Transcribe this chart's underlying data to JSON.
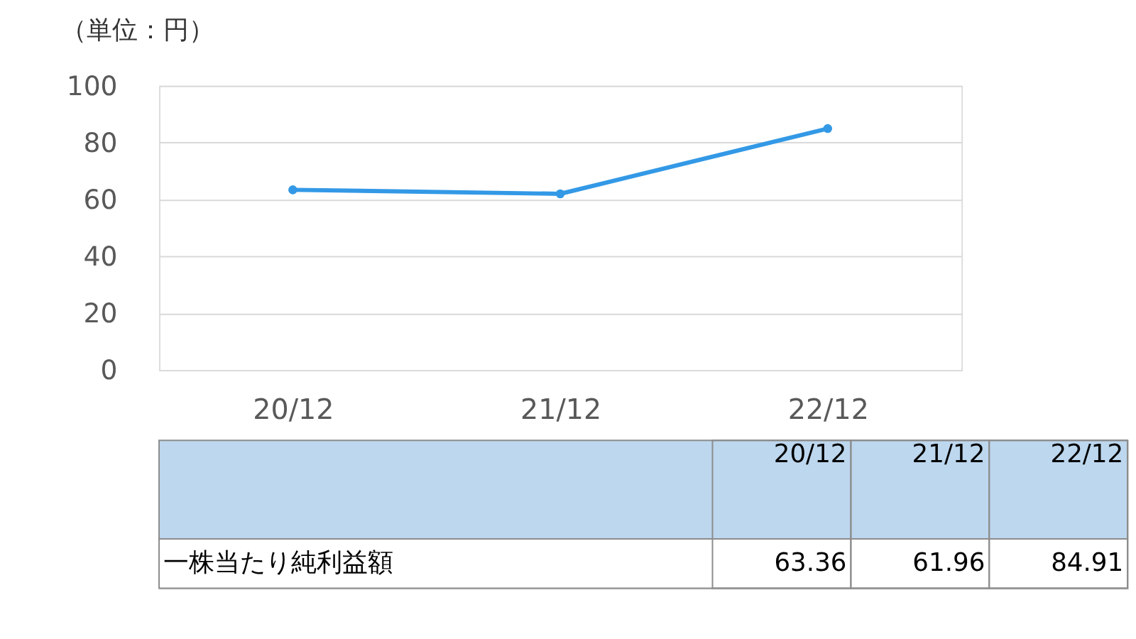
{
  "chart_data": [
    {
      "type": "line",
      "ylabel": "（単位：円）",
      "categories": [
        "20/12",
        "21/12",
        "22/12"
      ],
      "series": [
        {
          "color": "#3399e6",
          "values": [
            63.36,
            61.96,
            84.91
          ]
        }
      ],
      "ylim": [
        0,
        100
      ],
      "yticks": [
        0,
        20,
        40,
        60,
        80,
        100
      ],
      "grid": "y",
      "marker": "circle",
      "line_style": "solid"
    },
    {
      "type": "other",
      "categories": [
        "20/12",
        "21/12",
        "22/12"
      ],
      "series": [
        {
          "name": "一株当たり純利益額",
          "values": [
            63.36,
            61.96,
            84.91
          ]
        }
      ],
      "data_labels": true
    }
  ]
}
